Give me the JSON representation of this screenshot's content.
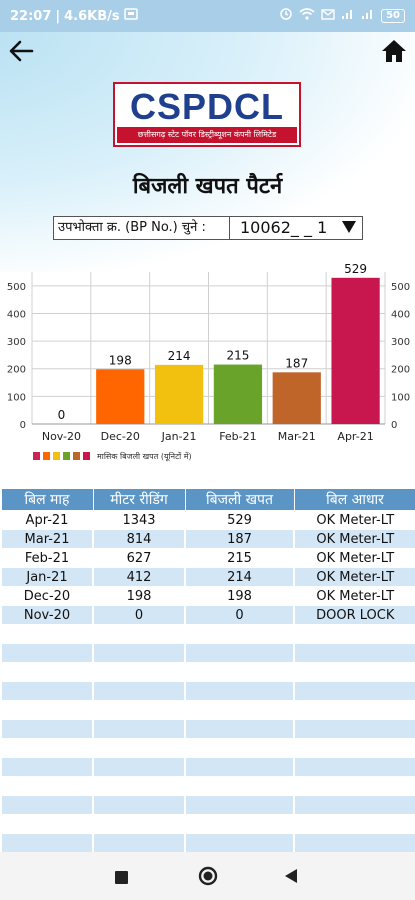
{
  "status_bar": {
    "time": "22:07",
    "speed": "4.6KB/s",
    "battery": "50"
  },
  "header": {
    "logo_text": "CSPDCL",
    "logo_subtitle": "छत्तीसगढ़ स्टेट पॉवर डिस्ट्रीब्यूशन कंपनी लिमिटेड",
    "title": "बिजली खपत पैटर्न"
  },
  "bp_selector": {
    "label": "उपभोक्ता क्र. (BP No.) चुने :",
    "value": "10062_ _ 1"
  },
  "colors": {
    "status_bar": "#a9cfe8",
    "table_header": "#5b95c6",
    "table_stripe": "#d3e6f6",
    "brand_red": "#c4122f",
    "brand_blue": "#1f3f8f"
  },
  "chart_data": {
    "type": "bar",
    "categories": [
      "Nov-20",
      "Dec-20",
      "Jan-21",
      "Feb-21",
      "Mar-21",
      "Apr-21"
    ],
    "values": [
      0,
      198,
      214,
      215,
      187,
      529
    ],
    "bar_colors": [
      "#cc2255",
      "#ff6600",
      "#f2c00f",
      "#6aa32a",
      "#c0652a",
      "#c8174f"
    ],
    "ylim": [
      0,
      550
    ],
    "yticks": [
      0,
      100,
      200,
      300,
      400,
      500
    ],
    "legend_label": "मासिक बिजली खपत (यूनिटों में)",
    "grid": true
  },
  "table": {
    "headers": [
      "बिल माह",
      "मीटर रीडिंग",
      "बिजली खपत",
      "बिल आधार"
    ],
    "rows": [
      [
        "Apr-21",
        "1343",
        "529",
        "OK Meter-LT"
      ],
      [
        "Mar-21",
        "814",
        "187",
        "OK Meter-LT"
      ],
      [
        "Feb-21",
        "627",
        "215",
        "OK Meter-LT"
      ],
      [
        "Jan-21",
        "412",
        "214",
        "OK Meter-LT"
      ],
      [
        "Dec-20",
        "198",
        "198",
        "OK Meter-LT"
      ],
      [
        "Nov-20",
        "0",
        "0",
        "DOOR LOCK"
      ]
    ]
  },
  "icons": {
    "back": "arrow-left-icon",
    "home": "home-icon",
    "nav_recent": "square-icon",
    "nav_home": "circle-icon",
    "nav_back": "triangle-icon"
  }
}
